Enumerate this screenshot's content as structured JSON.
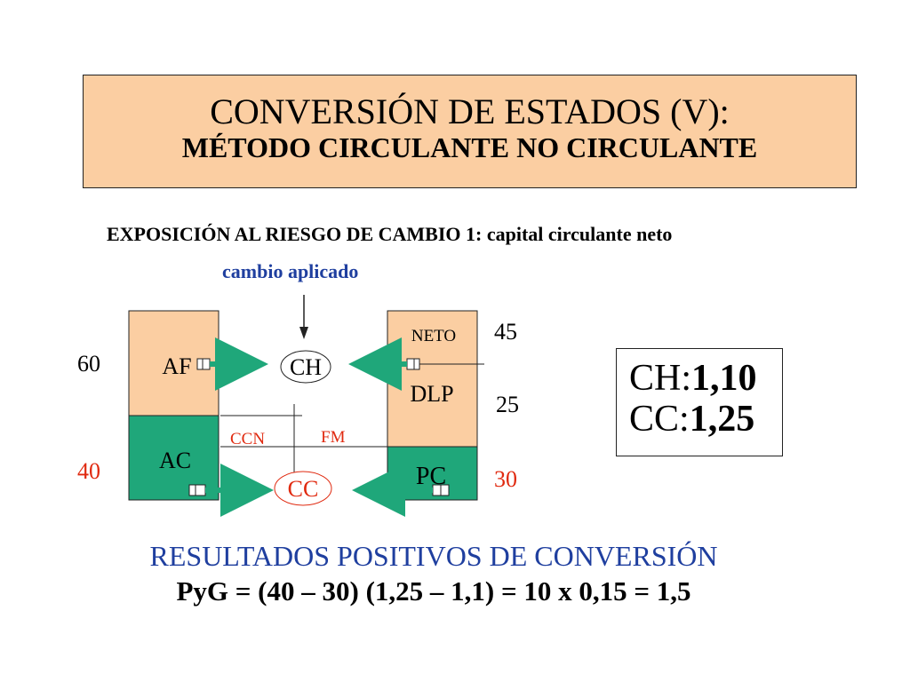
{
  "title": {
    "line1": "CONVERSIÓN DE ESTADOS (V):",
    "line2": "MÉTODO CIRCULANTE NO CIRCULANTE"
  },
  "heading": "EXPOSICIÓN AL RIESGO DE CAMBIO 1: capital circulante neto",
  "applied_rate_label": "cambio aplicado",
  "balance_sheet": {
    "assets": {
      "fixed": {
        "label": "AF",
        "value": "60"
      },
      "current": {
        "label": "AC",
        "value": "40"
      }
    },
    "liabilities": {
      "equity": {
        "label": "NETO",
        "value": "45"
      },
      "long_term": {
        "label": "DLP",
        "value": "25"
      },
      "current": {
        "label": "PC",
        "value": "30"
      }
    },
    "ccn_label": "CCN",
    "fm_label": "FM",
    "historical_rate_label": "CH",
    "closing_rate_label": "CC"
  },
  "rates": {
    "ch_prefix": "CH:",
    "ch_value": "1,10",
    "cc_prefix": "CC:",
    "cc_value": "1,25"
  },
  "results_title": "RESULTADOS POSITIVOS DE CONVERSIÓN",
  "formula": "PyG = (40 – 30) (1,25 – 1,1) = 10 x 0,15 = 1,5",
  "colors": {
    "title_bg": "#FBCEA2",
    "peach": "#FBCEA2",
    "green": "#1FA77A",
    "red": "#E02A10",
    "blue": "#1F3F9F"
  }
}
